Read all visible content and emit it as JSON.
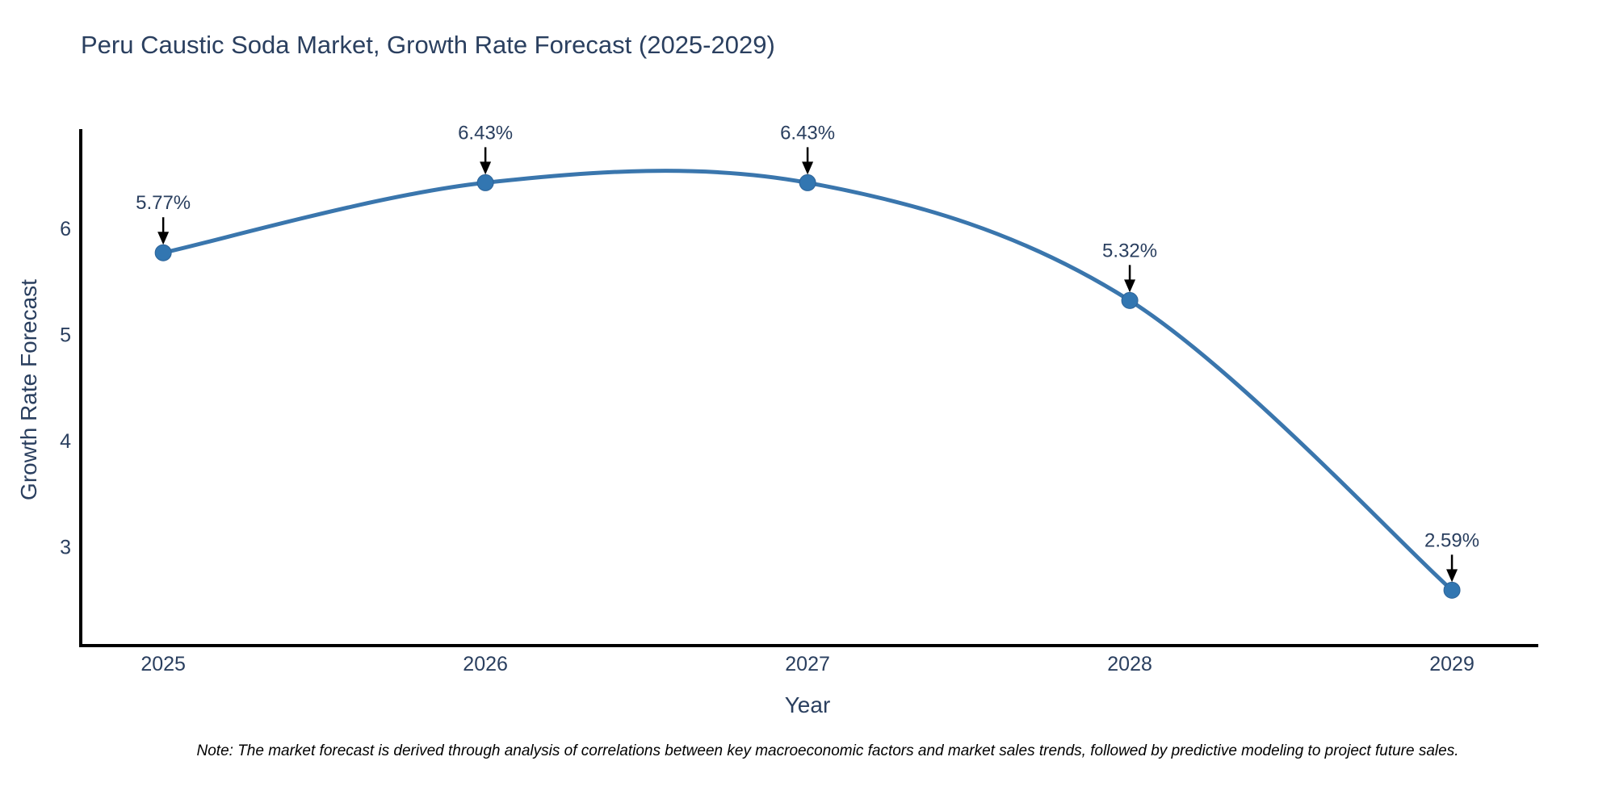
{
  "title": "Peru Caustic Soda Market, Growth Rate Forecast (2025-2029)",
  "note": "Note: The market forecast is derived through analysis of correlations between key macroeconomic factors and market sales trends, followed by predictive modeling to project future sales.",
  "chart_data": {
    "type": "line",
    "title": "Peru Caustic Soda Market, Growth Rate Forecast (2025-2029)",
    "xlabel": "Year",
    "ylabel": "Growth Rate Forecast",
    "x": [
      2025,
      2026,
      2027,
      2028,
      2029
    ],
    "series": [
      {
        "name": "Growth Rate Forecast",
        "values": [
          5.77,
          6.43,
          6.43,
          5.32,
          2.59
        ]
      }
    ],
    "point_labels": [
      "5.77%",
      "6.43%",
      "6.43%",
      "5.32%",
      "2.59%"
    ],
    "yticks": [
      3,
      4,
      5,
      6
    ],
    "ylim": [
      2.068,
      6.935
    ],
    "xlim": [
      2024.744,
      2029.268
    ],
    "grid": false,
    "legend_position": "none",
    "line_shape": "spline",
    "line_color": "#3a76ad",
    "marker_color": "#3276b1",
    "marker_edge_color": "#2d6398",
    "axis_color": "#000000",
    "arrow_color": "#000000",
    "text_color": "#2a3f5f"
  }
}
